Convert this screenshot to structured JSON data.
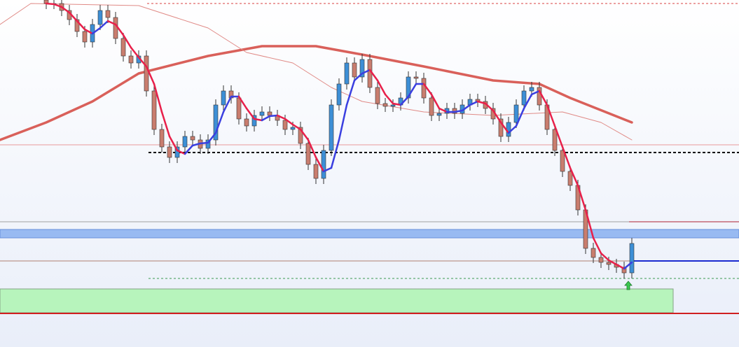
{
  "chart_data": {
    "type": "candlestick",
    "ylim": [
      4,
      500
    ],
    "up_color": "#3d8fd6",
    "down_color": "#c97d6e",
    "open": [
      500,
      495,
      495,
      485,
      472,
      455,
      440,
      465,
      485,
      475,
      445,
      420,
      410,
      420,
      370,
      315,
      290,
      275,
      290,
      305,
      300,
      288,
      300,
      350,
      370,
      360,
      330,
      320,
      335,
      340,
      335,
      328,
      315,
      318,
      295,
      265,
      245,
      285,
      350,
      380,
      410,
      390,
      415,
      375,
      352,
      348,
      350,
      360,
      390,
      388,
      360,
      335,
      338,
      345,
      338,
      350,
      358,
      355,
      345,
      330,
      305,
      325,
      350,
      370,
      375,
      350,
      315,
      285,
      255,
      235,
      200,
      145,
      132,
      125,
      122,
      118,
      110
    ],
    "high": [
      508,
      503,
      503,
      493,
      480,
      463,
      473,
      493,
      493,
      483,
      453,
      428,
      428,
      428,
      378,
      323,
      298,
      298,
      313,
      313,
      308,
      308,
      358,
      378,
      378,
      368,
      338,
      343,
      348,
      348,
      343,
      336,
      326,
      326,
      303,
      273,
      293,
      358,
      388,
      418,
      418,
      423,
      423,
      383,
      360,
      358,
      368,
      398,
      398,
      396,
      368,
      346,
      353,
      353,
      358,
      366,
      366,
      363,
      353,
      338,
      333,
      358,
      378,
      383,
      383,
      358,
      323,
      293,
      263,
      243,
      208,
      153,
      140,
      133,
      130,
      126,
      160
    ],
    "low": [
      487,
      487,
      477,
      464,
      447,
      432,
      432,
      457,
      467,
      437,
      412,
      402,
      402,
      362,
      307,
      282,
      267,
      267,
      282,
      292,
      280,
      280,
      292,
      342,
      352,
      322,
      312,
      312,
      327,
      327,
      320,
      307,
      307,
      287,
      257,
      237,
      237,
      277,
      342,
      372,
      382,
      382,
      367,
      344,
      340,
      340,
      342,
      352,
      380,
      352,
      327,
      327,
      330,
      330,
      330,
      342,
      347,
      337,
      322,
      297,
      297,
      317,
      342,
      362,
      342,
      307,
      277,
      247,
      227,
      192,
      137,
      124,
      117,
      114,
      110,
      102,
      102
    ],
    "close": [
      495,
      495,
      485,
      472,
      455,
      440,
      465,
      485,
      475,
      445,
      420,
      410,
      420,
      370,
      315,
      290,
      275,
      290,
      305,
      300,
      288,
      300,
      350,
      370,
      360,
      330,
      320,
      335,
      340,
      335,
      328,
      315,
      318,
      295,
      265,
      245,
      285,
      350,
      380,
      410,
      390,
      415,
      375,
      352,
      348,
      350,
      360,
      390,
      388,
      360,
      335,
      338,
      345,
      338,
      350,
      358,
      355,
      345,
      330,
      305,
      325,
      350,
      370,
      375,
      350,
      315,
      285,
      255,
      235,
      200,
      145,
      132,
      125,
      122,
      118,
      110,
      152
    ],
    "fast_ma": {
      "up_color": "#3a3fe0",
      "down_color": "#e8204a",
      "values": [
        495,
        494,
        490,
        482,
        470,
        458,
        452,
        460,
        470,
        465,
        450,
        432,
        418,
        405,
        380,
        340,
        305,
        285,
        280,
        292,
        295,
        296,
        310,
        340,
        362,
        362,
        345,
        330,
        328,
        334,
        335,
        330,
        322,
        315,
        300,
        275,
        255,
        260,
        300,
        350,
        385,
        395,
        400,
        385,
        365,
        352,
        350,
        362,
        380,
        380,
        365,
        345,
        340,
        340,
        342,
        350,
        355,
        352,
        342,
        325,
        310,
        320,
        345,
        365,
        370,
        350,
        320,
        290,
        260,
        235,
        200,
        160,
        138,
        128,
        122,
        116,
        125
      ]
    },
    "lines": [
      {
        "color": "#d9605a",
        "width": 3.5,
        "x": [
          -6,
          0,
          6,
          12,
          21,
          28,
          35,
          41,
          49,
          58,
          64,
          68,
          76
        ],
        "values": [
          300,
          325,
          355,
          395,
          420,
          434,
          434,
          422,
          405,
          385,
          380,
          360,
          325
        ]
      },
      {
        "color": "#e08a86",
        "width": 1,
        "x": [
          -6,
          -2,
          12,
          21,
          26,
          32,
          37,
          41,
          49,
          58,
          67,
          72,
          76
        ],
        "values": [
          465,
          495,
          492,
          460,
          425,
          410,
          375,
          355,
          340,
          335,
          340,
          325,
          300
        ]
      }
    ],
    "levels": [
      {
        "value": 495,
        "color": "#d84040",
        "dash": "3,3",
        "width": 1
      },
      {
        "value": 293,
        "color": "#e89a9a",
        "dash": "",
        "width": 1
      },
      {
        "value": 282,
        "color": "#000000",
        "dash": "4,3",
        "width": 2
      },
      {
        "value": 183,
        "color": "#a0a0a0",
        "dash": "",
        "width": 1
      },
      {
        "value": 127,
        "color": "#b08070",
        "dash": "",
        "width": 1
      },
      {
        "value": 102,
        "color": "#3a9a50",
        "dash": "3,3",
        "width": 1
      },
      {
        "value": 52,
        "color": "#d02020",
        "dash": "",
        "width": 2
      }
    ],
    "zones": [
      {
        "from": 160,
        "to": 172,
        "color": "#8fb4f2"
      },
      {
        "from": 53,
        "to": 87,
        "color": "#b2f5b6"
      }
    ]
  }
}
